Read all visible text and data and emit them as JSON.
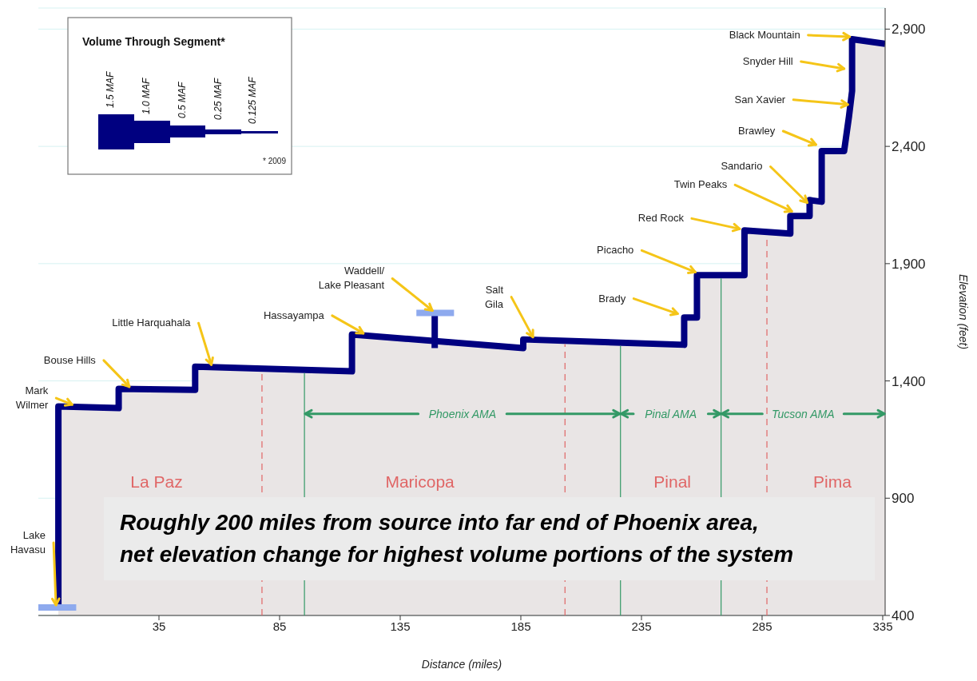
{
  "chart_data": {
    "type": "line",
    "xlabel": "Distance (miles)",
    "ylabel": "Elevation (feet)",
    "xlim": [
      -15,
      336
    ],
    "xticks": [
      35,
      85,
      135,
      185,
      235,
      285,
      335
    ],
    "ylim": [
      400,
      2990
    ],
    "yticks": [
      400,
      900,
      {
        "value": 1400,
        "label": "1,400"
      },
      {
        "value": 1900,
        "label": "1,900"
      },
      {
        "value": 2400,
        "label": "2,400"
      },
      {
        "value": 2900,
        "label": "2,900"
      }
    ],
    "grid": "y",
    "legend": false,
    "marker": "none",
    "line_style": "solid",
    "series": [
      {
        "type": "area",
        "color": "#000080",
        "x": [
          -6.7,
          -6.7,
          18.3,
          18.3,
          50,
          50,
          115,
          115,
          186,
          186,
          252.7,
          252.7,
          258,
          258,
          277.7,
          277.7,
          296.7,
          296.7,
          304.7,
          304.7,
          309.7,
          309.7,
          319,
          321,
          322.3,
          322.3,
          336
        ],
        "values": [
          444,
          1291,
          1284,
          1366,
          1362,
          1461,
          1441,
          1598,
          1540,
          1577,
          1554,
          1670,
          1670,
          1851,
          1851,
          2042,
          2028,
          2103,
          2103,
          2171,
          2164,
          2380,
          2380,
          2526,
          2636,
          2857,
          2837
        ]
      },
      {
        "type": "line",
        "color": "#000080",
        "x": [
          149.3,
          149.3
        ],
        "values": [
          1540,
          1690
        ]
      },
      {
        "type": "line",
        "color": "#8eaaee",
        "x": [
          -15,
          0.7
        ],
        "values": [
          434,
          434
        ]
      },
      {
        "type": "line",
        "color": "#8eaaee",
        "x": [
          141.7,
          157.3
        ],
        "values": [
          1690,
          1690
        ]
      }
    ],
    "ref_lines": [
      {
        "axis": "x",
        "value": 77.7,
        "color": "#e06666",
        "line_style": "dashed"
      },
      {
        "axis": "x",
        "value": 203.3,
        "color": "#e06666",
        "line_style": "dashed"
      },
      {
        "axis": "x",
        "value": 287,
        "color": "#e06666",
        "line_style": "dashed"
      },
      {
        "axis": "x",
        "value": 95.3,
        "color": "#339966",
        "line_style": "solid"
      },
      {
        "axis": "x",
        "value": 226.3,
        "color": "#339966",
        "line_style": "solid"
      },
      {
        "axis": "x",
        "value": 268,
        "color": "#339966",
        "line_style": "solid"
      }
    ],
    "annotations": [
      {
        "text": "Black Mountain",
        "x": 322.3,
        "y": 2857
      },
      {
        "text": "Snyder Hill",
        "x": 320,
        "y": 2721
      },
      {
        "text": "San Xavier",
        "x": 321.5,
        "y": 2568
      },
      {
        "text": "Brawley",
        "x": 308.3,
        "y": 2397
      },
      {
        "text": "Sandario",
        "x": 304.7,
        "y": 2150
      },
      {
        "text": "Twin Peaks",
        "x": 298.3,
        "y": 2113
      },
      {
        "text": "Red Rock",
        "x": 276.7,
        "y": 2038
      },
      {
        "text": "Picacho",
        "x": 258.3,
        "y": 1854
      },
      {
        "text": "Brady",
        "x": 251,
        "y": 1676
      },
      {
        "text": "Salt\nGila",
        "x": 191,
        "y": 1577
      },
      {
        "text": "Waddell/\nLake Pleasant",
        "x": 149.3,
        "y": 1690
      },
      {
        "text": "Hassayampa",
        "x": 120.7,
        "y": 1593
      },
      {
        "text": "Little Harquahala",
        "x": 57.7,
        "y": 1459
      },
      {
        "text": "Bouse Hills",
        "x": 23.7,
        "y": 1365
      },
      {
        "text": "Mark\nWilmer",
        "x": 0,
        "y": 1289
      },
      {
        "text": "Lake\nHavasu",
        "x": -6.7,
        "y": 434
      },
      "Volume Through Segment*",
      "1.5 MAF",
      "1.0 MAF",
      "0.5 MAF",
      "0.25 MAF",
      "0.125 MAF",
      "* 2009",
      "Roughly 200 miles from source into far end of Phoenix area,\nnet elevation change for highest volume portions of the system",
      "La Paz",
      "Maricopa",
      "Pinal",
      "Pima",
      {
        "text": "Phoenix AMA",
        "x": 95.3,
        "y": 1260
      },
      {
        "text": "Pinal AMA",
        "x": 226.3,
        "y": 1260
      },
      {
        "text": "Tucson AMA",
        "x": 268,
        "y": 1260
      }
    ]
  }
}
